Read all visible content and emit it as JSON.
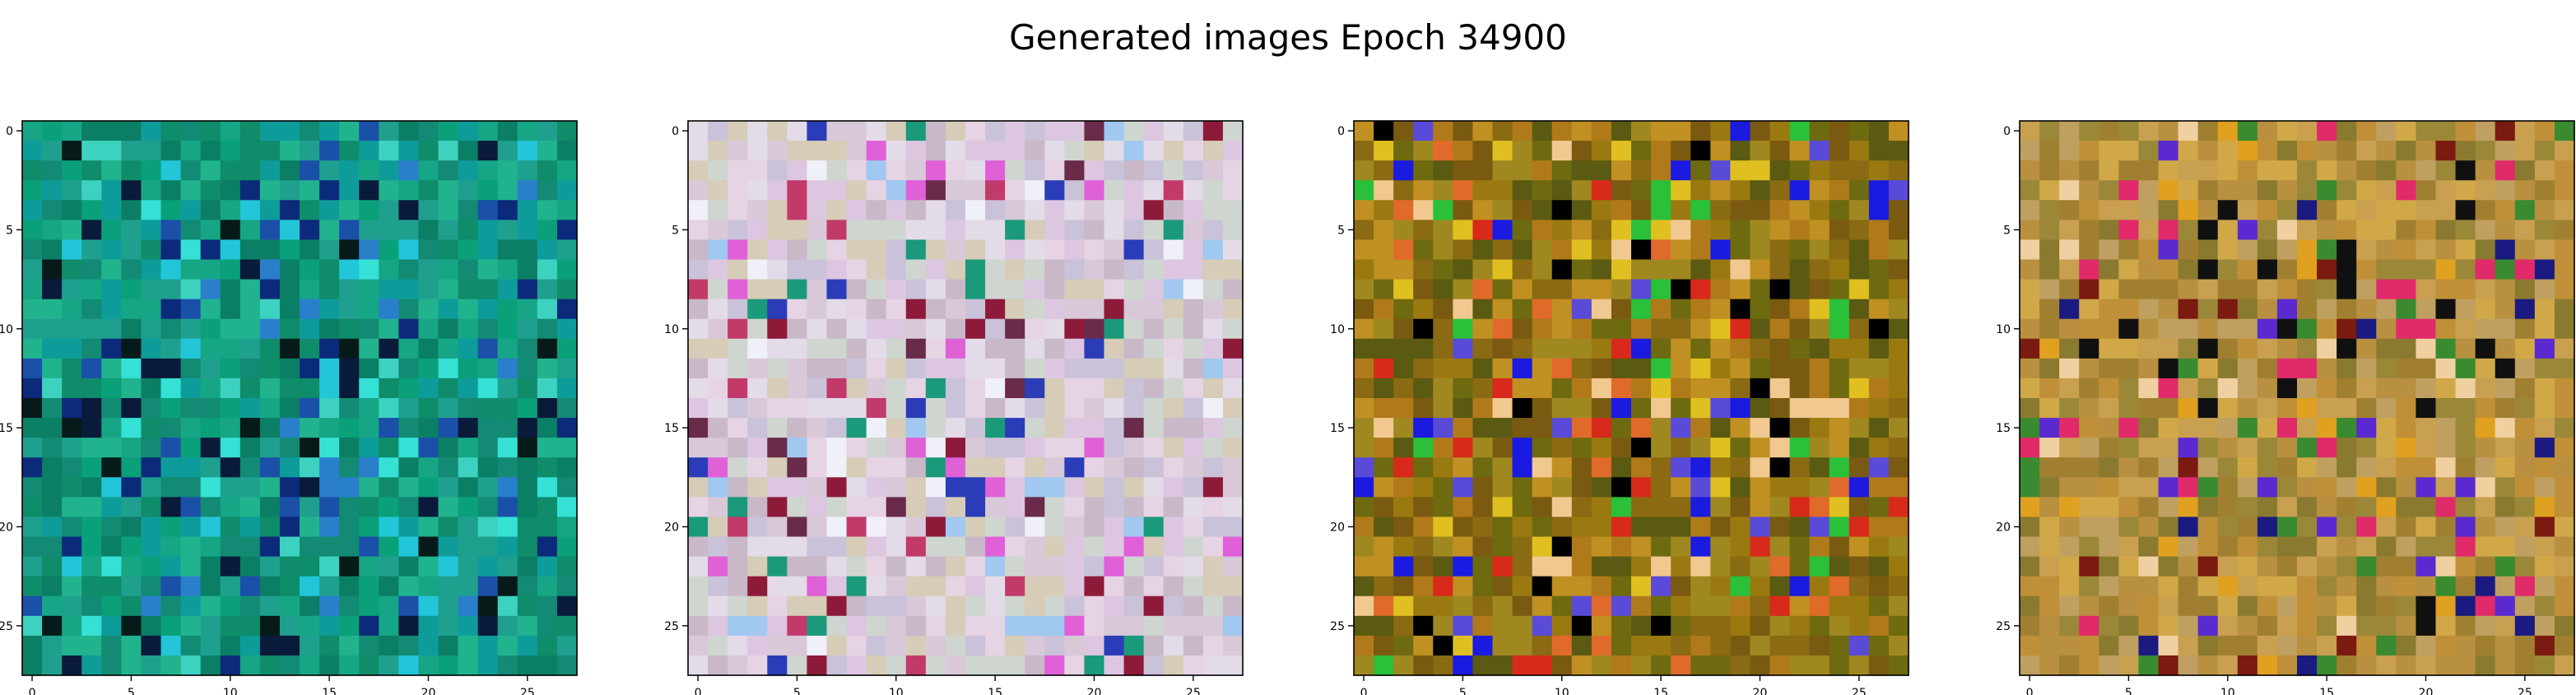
{
  "figure": {
    "title": "Generated images Epoch 34900"
  },
  "chart_data": [
    {
      "type": "heatmap",
      "grid_size": 28,
      "x_ticks": [
        0,
        5,
        10,
        15,
        20,
        25
      ],
      "y_ticks": [
        0,
        5,
        10,
        15,
        20,
        25
      ],
      "xlim": [
        -0.5,
        27.5
      ],
      "ylim": [
        27.5,
        -0.5
      ],
      "palette": {
        "base": [
          "#0f8c6a",
          "#0aa07a",
          "#16a685",
          "#1fa08f",
          "#0b7f65",
          "#128a74",
          "#21b38e",
          "#0e9c9a"
        ],
        "accent": [
          "#1a50a8",
          "#0c2a7a",
          "#22c6d8",
          "#3dd2c0",
          "#0a1a3a",
          "#061a1a",
          "#2a7fcb",
          "#35e0d5"
        ],
        "accent_ratio": 0.28
      }
    },
    {
      "type": "heatmap",
      "grid_size": 28,
      "x_ticks": [
        0,
        5,
        10,
        15,
        20,
        25
      ],
      "y_ticks": [
        0,
        5,
        10,
        15,
        20,
        25
      ],
      "xlim": [
        -0.5,
        27.5
      ],
      "ylim": [
        27.5,
        -0.5
      ],
      "palette": {
        "base": [
          "#d9c8d8",
          "#e6d3e3",
          "#c9c2d8",
          "#d6ccb7",
          "#e3dbe8",
          "#c8b8c8",
          "#dcc6e0",
          "#cfd6d0"
        ],
        "accent": [
          "#c23a6a",
          "#8e1a3a",
          "#2a3cb8",
          "#e060d8",
          "#6a2a4a",
          "#a0c8f0",
          "#f0f0f8",
          "#1a9a7a"
        ],
        "accent_ratio": 0.22
      }
    },
    {
      "type": "heatmap",
      "grid_size": 28,
      "x_ticks": [
        0,
        5,
        10,
        15,
        20,
        25
      ],
      "y_ticks": [
        0,
        5,
        10,
        15,
        20,
        25
      ],
      "xlim": [
        -0.5,
        27.5
      ],
      "ylim": [
        27.5,
        -0.5
      ],
      "palette": {
        "base": [
          "#8a6a12",
          "#9a7a10",
          "#6e6a10",
          "#b07a1a",
          "#7a5a10",
          "#a08820",
          "#c09022",
          "#5a5a12"
        ],
        "accent": [
          "#1a1ae0",
          "#d82a1a",
          "#e0c020",
          "#000000",
          "#5a4ad8",
          "#e06a2a",
          "#2ac03a",
          "#f0c890"
        ],
        "accent_ratio": 0.3
      }
    },
    {
      "type": "heatmap",
      "grid_size": 28,
      "x_ticks": [
        0,
        5,
        10,
        15,
        20,
        25
      ],
      "y_ticks": [
        0,
        5,
        10,
        15,
        20,
        25
      ],
      "xlim": [
        -0.5,
        27.5
      ],
      "ylim": [
        27.5,
        -0.5
      ],
      "palette": {
        "base": [
          "#b89040",
          "#c8a050",
          "#a08030",
          "#d0a848",
          "#9a8838",
          "#bfa060",
          "#c09038",
          "#8a7a30"
        ],
        "accent": [
          "#5a2ad0",
          "#e02a6a",
          "#1a1a80",
          "#e0a020",
          "#7a1a10",
          "#3a8a30",
          "#f0d0a0",
          "#101010"
        ],
        "accent_ratio": 0.24
      }
    }
  ]
}
